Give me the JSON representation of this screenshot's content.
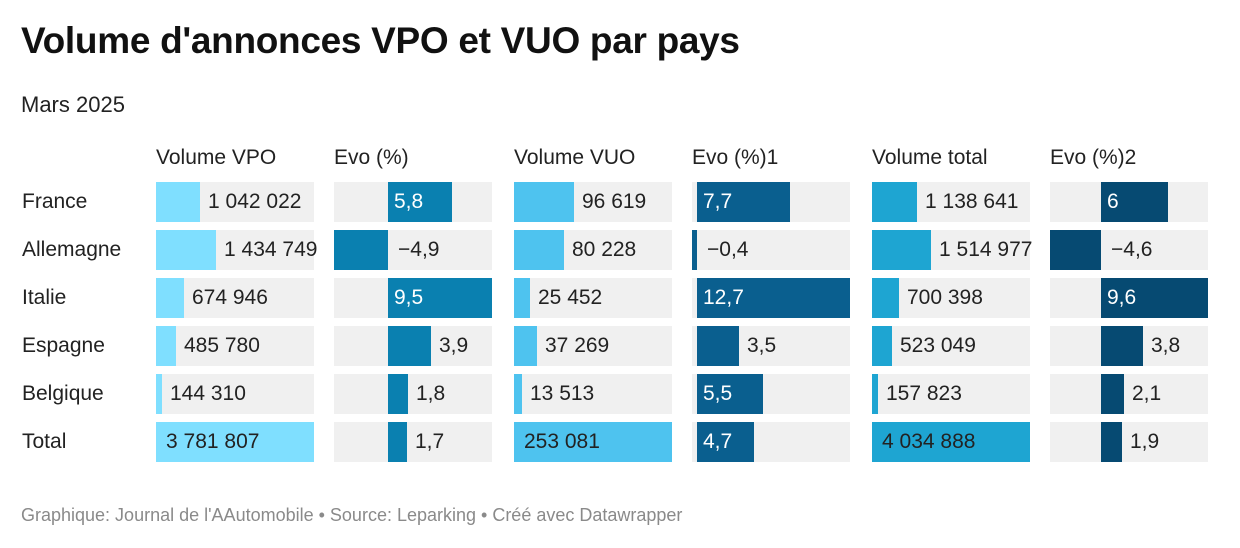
{
  "title": "Volume d'annonces VPO et VUO par pays",
  "subtitle": "Mars 2025",
  "footer": "Graphique: Journal de l'AAutomobile • Source: Leparking • Créé avec Datawrapper",
  "chart_data": {
    "type": "table",
    "columns": [
      {
        "label": "Volume VPO",
        "kind": "volume",
        "color": "#7fdfff",
        "max": 3781807
      },
      {
        "label": "Evo (%)",
        "kind": "evo",
        "color": "#0a80b0",
        "range": [
          -4.9,
          9.5
        ]
      },
      {
        "label": "Volume VUO",
        "kind": "volume",
        "color": "#4ec3ef",
        "max": 253081
      },
      {
        "label": "Evo (%)1",
        "kind": "evo",
        "color": "#0a5f8f",
        "range": [
          -0.4,
          12.7
        ]
      },
      {
        "label": "Volume total",
        "kind": "volume",
        "color": "#1ea5d2",
        "max": 4034888
      },
      {
        "label": "Evo (%)2",
        "kind": "evo",
        "color": "#064a72",
        "range": [
          -4.6,
          9.6
        ]
      }
    ],
    "rows": [
      {
        "label": "France",
        "values": [
          1042022,
          5.8,
          96619,
          7.7,
          1138641,
          6
        ],
        "display": [
          "1 042 022",
          "5,8",
          "96 619",
          "7,7",
          "1 138 641",
          "6"
        ]
      },
      {
        "label": "Allemagne",
        "values": [
          1434749,
          -4.9,
          80228,
          -0.4,
          1514977,
          -4.6
        ],
        "display": [
          "1 434 749",
          "−4,9",
          "80 228",
          "−0,4",
          "1 514 977",
          "−4,6"
        ]
      },
      {
        "label": "Italie",
        "values": [
          674946,
          9.5,
          25452,
          12.7,
          700398,
          9.6
        ],
        "display": [
          "674 946",
          "9,5",
          "25 452",
          "12,7",
          "700 398",
          "9,6"
        ]
      },
      {
        "label": "Espagne",
        "values": [
          485780,
          3.9,
          37269,
          3.5,
          523049,
          3.8
        ],
        "display": [
          "485 780",
          "3,9",
          "37 269",
          "3,5",
          "523 049",
          "3,8"
        ]
      },
      {
        "label": "Belgique",
        "values": [
          144310,
          1.8,
          13513,
          5.5,
          157823,
          2.1
        ],
        "display": [
          "144 310",
          "1,8",
          "13 513",
          "5,5",
          "157 823",
          "2,1"
        ]
      },
      {
        "label": "Total",
        "values": [
          3781807,
          1.7,
          253081,
          4.7,
          4034888,
          1.9
        ],
        "display": [
          "3 781 807",
          "1,7",
          "253 081",
          "4,7",
          "4 034 888",
          "1,9"
        ]
      }
    ]
  }
}
